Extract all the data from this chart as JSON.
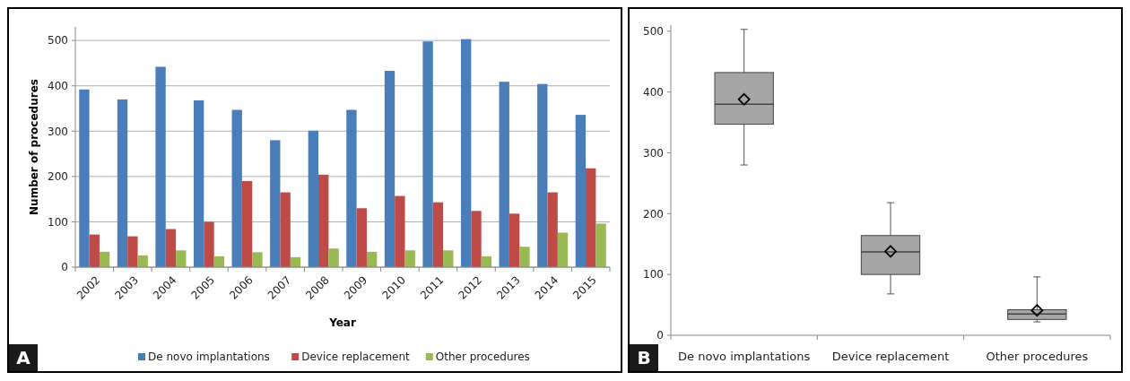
{
  "chart_data": [
    {
      "type": "bar",
      "xlabel": "Year",
      "ylabel": "Number of procedures",
      "annotations": [
        "A"
      ],
      "categories": [
        "2002",
        "2003",
        "2004",
        "2005",
        "2006",
        "2007",
        "2008",
        "2009",
        "2010",
        "2011",
        "2012",
        "2013",
        "2014",
        "2015"
      ],
      "series": [
        {
          "name": "De novo implantations",
          "color": "#4a7ebb",
          "values": [
            392,
            370,
            442,
            368,
            347,
            280,
            301,
            347,
            433,
            498,
            503,
            409,
            404,
            336
          ]
        },
        {
          "name": "Device replacement",
          "color": "#be4b48",
          "values": [
            72,
            68,
            84,
            100,
            190,
            165,
            204,
            130,
            157,
            143,
            124,
            118,
            165,
            218
          ]
        },
        {
          "name": "Other procedures",
          "color": "#98b954",
          "values": [
            34,
            26,
            37,
            24,
            33,
            22,
            41,
            34,
            37,
            37,
            24,
            45,
            76,
            96
          ]
        }
      ],
      "ylim": [
        0,
        530
      ],
      "yticks": [
        0,
        100,
        200,
        300,
        400,
        500
      ],
      "grid": "y",
      "legend": "bottom"
    },
    {
      "type": "box",
      "annotations": [
        "B"
      ],
      "categories": [
        "De novo implantations",
        "Device replacement",
        "Other procedures"
      ],
      "series": [
        {
          "color": "#a6a6a6",
          "boxes": [
            {
              "low": 280,
              "q1": 347,
              "median": 380,
              "q3": 432,
              "high": 503,
              "mean": 388
            },
            {
              "low": 68,
              "q1": 100,
              "median": 137,
              "q3": 164,
              "high": 218,
              "mean": 138
            },
            {
              "low": 22,
              "q1": 26,
              "median": 35,
              "q3": 42,
              "high": 96,
              "mean": 41
            }
          ]
        }
      ],
      "ylim": [
        0,
        510
      ],
      "yticks": [
        0,
        100,
        200,
        300,
        400,
        500
      ],
      "grid": false
    }
  ]
}
